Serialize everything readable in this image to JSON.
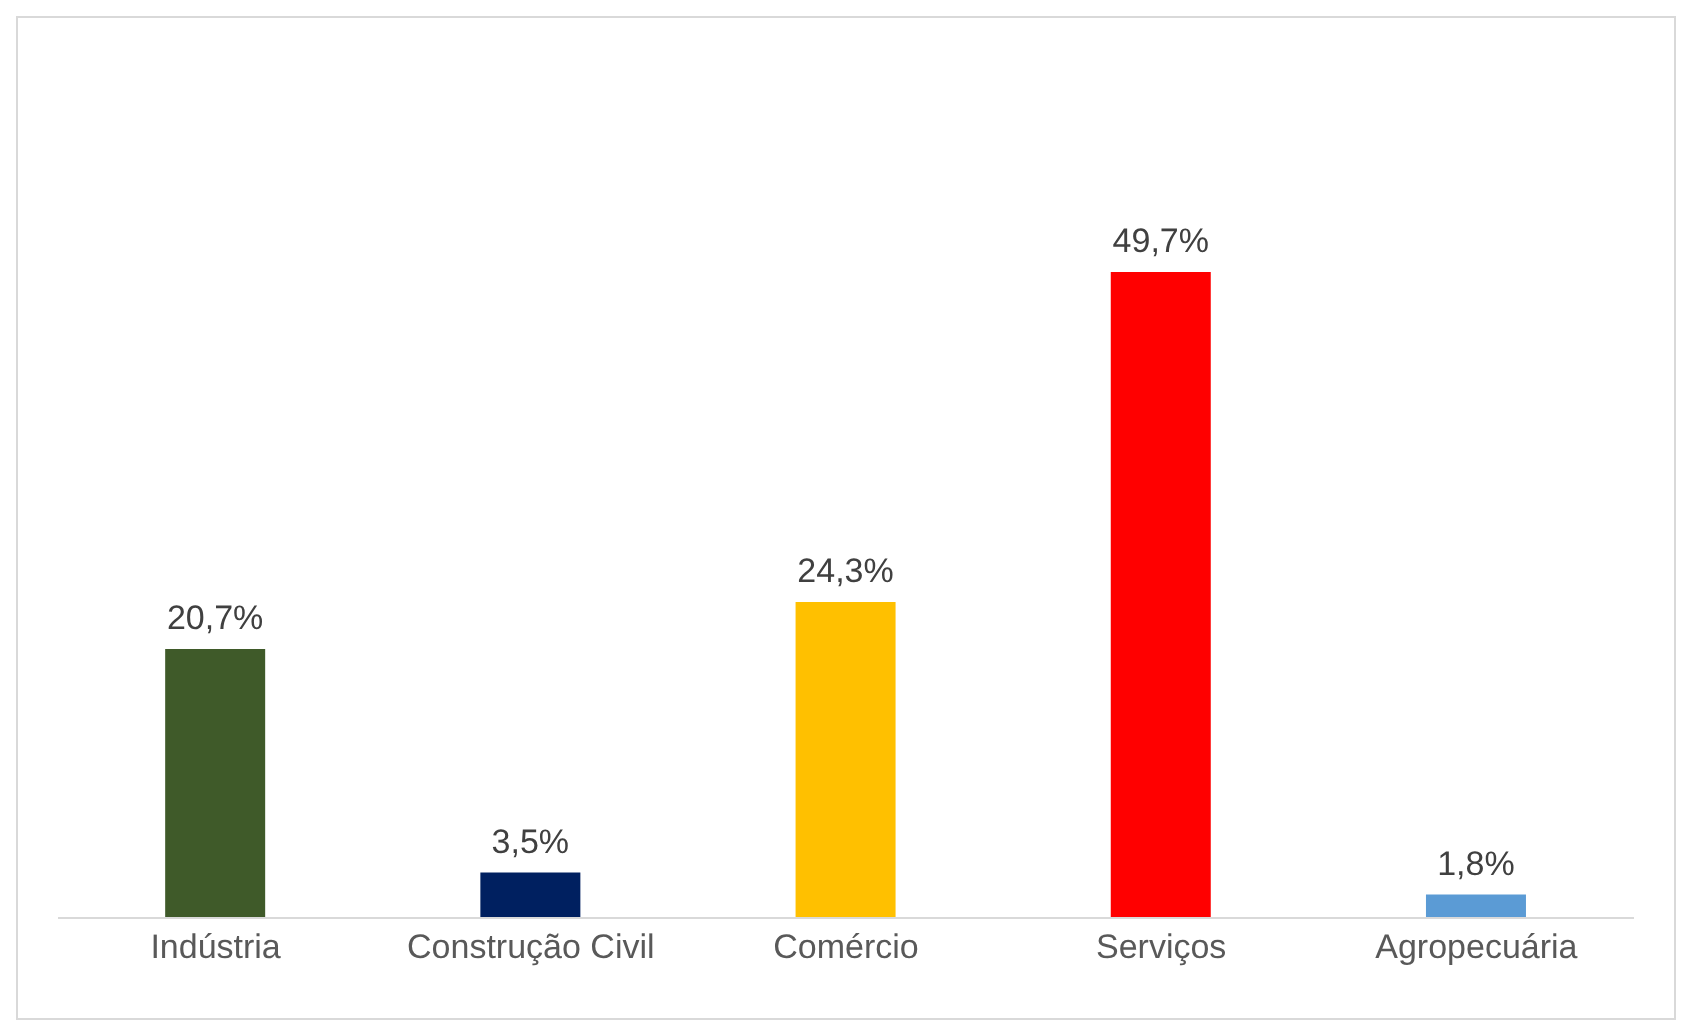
{
  "chart_data": {
    "type": "bar",
    "categories": [
      "Indústria",
      "Construção Civil",
      "Comércio",
      "Serviços",
      "Agropecuária"
    ],
    "values": [
      20.7,
      3.5,
      24.3,
      49.7,
      1.8
    ],
    "colors": [
      "#3f5a29",
      "#002060",
      "#ffc000",
      "#ff0000",
      "#5b9bd5"
    ],
    "value_labels": [
      "20,7%",
      "3,5%",
      "24,3%",
      "49,7%",
      "1,8%"
    ],
    "grid": false,
    "legend": false
  }
}
